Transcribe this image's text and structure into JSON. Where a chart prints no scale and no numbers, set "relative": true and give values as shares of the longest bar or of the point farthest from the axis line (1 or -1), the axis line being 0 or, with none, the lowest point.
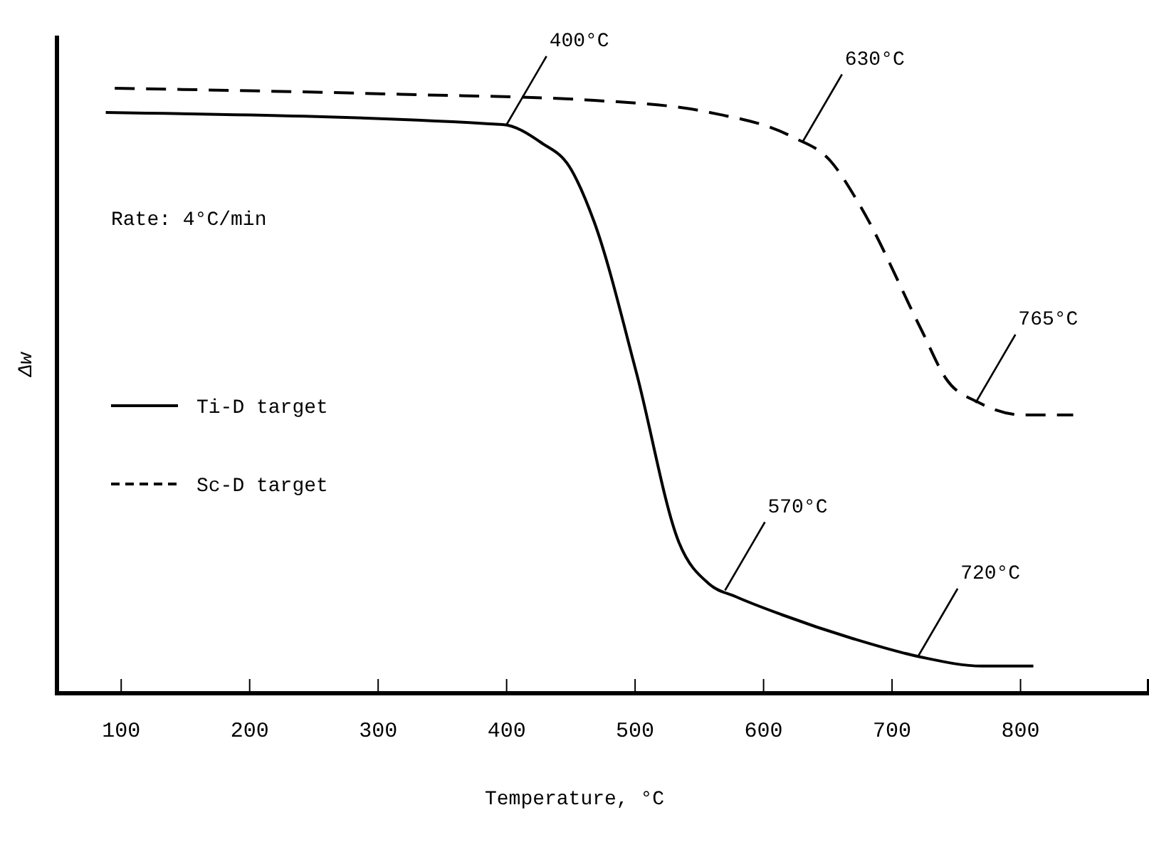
{
  "chart_data": {
    "type": "line",
    "relative": true,
    "xlabel": "Temperature, °C",
    "ylabel": "Δw",
    "xlim": [
      50,
      900
    ],
    "xticks": [
      100,
      200,
      300,
      400,
      500,
      600,
      700,
      800
    ],
    "legend": "left",
    "grid": false,
    "series": [
      {
        "name": "Ti-D target",
        "color": "#000000",
        "line_style": "solid",
        "x": [
          88,
          397,
          427,
          449,
          468,
          501,
          534,
          558,
          578,
          614,
          670,
          722,
          770,
          810
        ],
        "values": [
          0.96,
          0.94,
          0.91,
          0.87,
          0.78,
          0.53,
          0.25,
          0.18,
          0.16,
          0.13,
          0.09,
          0.06,
          0.045,
          0.045
        ]
      },
      {
        "name": "Sc-D target",
        "color": "#000000",
        "line_style": "dashed",
        "x": [
          95,
          318,
          468,
          558,
          622,
          652,
          674,
          723,
          742,
          768,
          802,
          841
        ],
        "values": [
          1.0,
          0.99,
          0.98,
          0.96,
          0.92,
          0.88,
          0.81,
          0.6,
          0.52,
          0.48,
          0.46,
          0.46
        ]
      }
    ],
    "annotations": [
      "Rate: 4°C/min",
      {
        "text": "400°C",
        "x": 400,
        "y": 0.94
      },
      {
        "text": "630°C",
        "x": 630,
        "y": 0.91
      },
      {
        "text": "765°C",
        "x": 765,
        "y": 0.48
      },
      {
        "text": "570°C",
        "x": 570,
        "y": 0.17
      },
      {
        "text": "720°C",
        "x": 720,
        "y": 0.06
      }
    ]
  }
}
